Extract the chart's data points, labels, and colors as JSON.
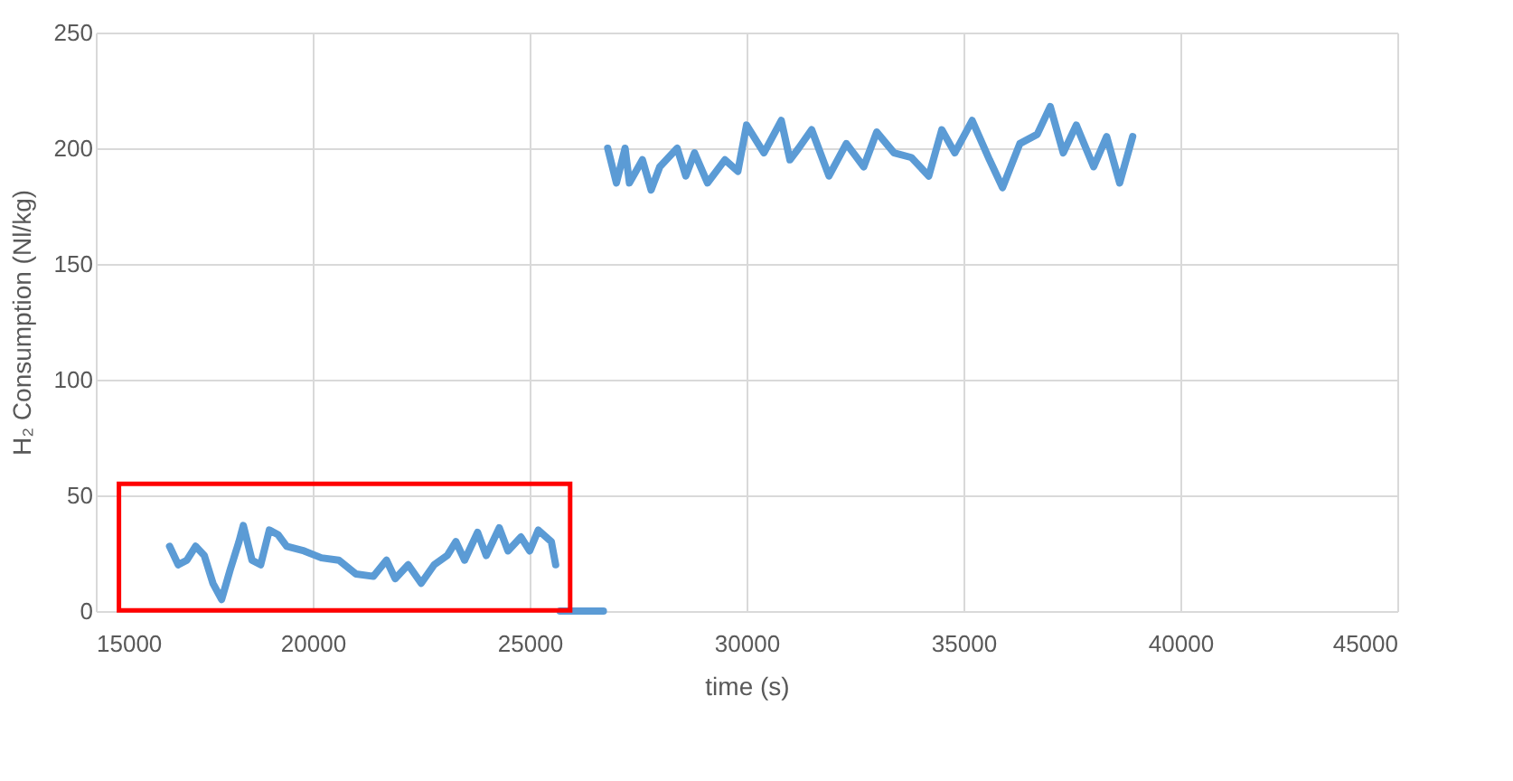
{
  "chart_data": {
    "type": "line",
    "xlabel": "time (s)",
    "ylabel": "H₂ Consumption (Nl/kg)",
    "xlim": [
      15000,
      45000
    ],
    "xticks": [
      15000,
      20000,
      25000,
      30000,
      35000,
      40000,
      45000
    ],
    "ylim": [
      0,
      250
    ],
    "yticks": [
      0,
      50,
      100,
      150,
      200,
      250
    ],
    "grid": true,
    "marker": "none",
    "line_style": "solid",
    "series": [
      {
        "color": "#5b9bd5",
        "x": [
          16700,
          16900,
          17100,
          17300,
          17500,
          17700,
          17900,
          18100,
          18300,
          18400,
          18600,
          18800,
          19000,
          19200,
          19400,
          19800,
          20200,
          20600,
          21000,
          21400,
          21700,
          21900,
          22200,
          22500,
          22800,
          23100,
          23300,
          23500,
          23800,
          24000,
          24300,
          24500,
          24800,
          25000,
          25200,
          25500,
          25600,
          25650,
          25700,
          26700,
          26750,
          26800,
          27000,
          27200,
          27300,
          27600,
          27800,
          28000,
          28400,
          28600,
          28800,
          29100,
          29500,
          29800,
          30000,
          30400,
          30800,
          31000,
          31200,
          31500,
          31900,
          32300,
          32700,
          33000,
          33400,
          33800,
          34200,
          34500,
          34800,
          35200,
          35600,
          35900,
          36300,
          36700,
          37000,
          37300,
          37600,
          38000,
          38300,
          38600,
          38900
        ],
        "values": [
          28,
          20,
          22,
          28,
          24,
          12,
          5,
          18,
          30,
          37,
          22,
          20,
          35,
          33,
          28,
          26,
          23,
          22,
          16,
          15,
          22,
          14,
          20,
          12,
          20,
          24,
          30,
          22,
          34,
          24,
          36,
          26,
          32,
          26,
          35,
          30,
          20,
          null,
          0,
          0,
          null,
          200,
          185,
          200,
          185,
          195,
          182,
          192,
          200,
          188,
          198,
          185,
          195,
          190,
          210,
          198,
          212,
          195,
          200,
          208,
          188,
          202,
          192,
          207,
          198,
          196,
          188,
          208,
          198,
          212,
          195,
          183,
          202,
          206,
          218,
          198,
          210,
          192,
          205,
          185,
          205
        ]
      }
    ]
  }
}
